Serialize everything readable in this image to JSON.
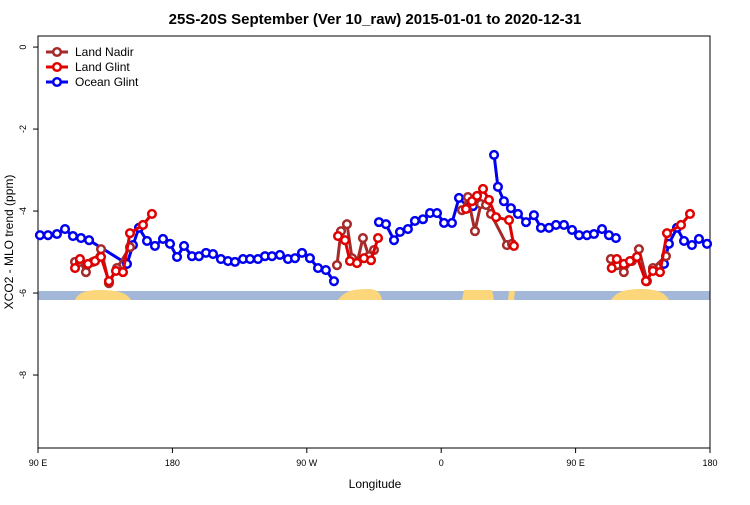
{
  "chart_data": {
    "type": "line",
    "title": "25S-20S September (Ver 10_raw)   2015-01-01 to 2020-12-31",
    "x_label": "Longitude",
    "y_label": "XCO2 - MLO trend (ppm)",
    "xlim": [
      90,
      540
    ],
    "ylim": [
      -9.78,
      0.27
    ],
    "xticks": [
      {
        "value": 90,
        "label": "90 E"
      },
      180,
      {
        "value": 270,
        "label": "90 W"
      },
      {
        "value": 360,
        "label": "0"
      },
      {
        "value": 450,
        "label": "90 E"
      },
      {
        "value": 540,
        "label": "180"
      }
    ],
    "yticks": [
      0,
      -2,
      -4,
      -6,
      -8
    ],
    "legend": "top-left",
    "series": [
      {
        "name": "Land Nadir",
        "color": "#a52a2a",
        "x": [
          114.8,
          118.1,
          122.1,
          126.8,
          132.2,
          137.5,
          142.9,
          151.6,
          null,
          290.2,
          292.9,
          296.9,
          300.3,
          303.6,
          307.6,
          311.6,
          315.0,
          null,
          373.9,
          377.9,
          382.6,
          386.6,
          390.0,
          393.3,
          404.0,
          407.4,
          null,
          473.6,
          477.6,
          482.3,
          487.7,
          492.4,
          497.8,
          501.8,
          510.5
        ],
        "values": [
          -5.24,
          -5.24,
          -5.49,
          -5.24,
          -4.93,
          -5.76,
          -5.39,
          -4.88,
          null,
          -5.32,
          -4.49,
          -4.32,
          -5.15,
          -5.27,
          -4.66,
          -5.1,
          -4.95,
          null,
          -3.98,
          -3.66,
          -4.49,
          -3.83,
          -3.85,
          -4.07,
          -4.83,
          -4.8,
          null,
          -5.17,
          -5.32,
          -5.49,
          -5.22,
          -4.93,
          -5.71,
          -5.39,
          -5.1
        ]
      },
      {
        "name": "Land Glint",
        "color": "#e00000",
        "x": [
          114.8,
          118.1,
          123.5,
          128.2,
          132.2,
          137.5,
          142.2,
          146.9,
          151.6,
          160.3,
          166.3,
          null,
          290.9,
          295.6,
          298.9,
          303.6,
          308.3,
          313.0,
          317.7,
          null,
          376.6,
          380.6,
          384.0,
          388.0,
          392.0,
          396.7,
          405.4,
          408.7,
          null,
          474.2,
          477.6,
          482.3,
          486.4,
          491.1,
          497.1,
          501.8,
          506.5,
          511.2,
          520.6,
          526.6
        ],
        "values": [
          -5.39,
          -5.17,
          -5.29,
          -5.22,
          -5.12,
          -5.71,
          -5.46,
          -5.49,
          -4.54,
          -4.34,
          -4.07,
          null,
          -4.61,
          -4.71,
          -5.22,
          -5.27,
          -5.15,
          -5.2,
          -4.66,
          null,
          -3.95,
          -3.76,
          -3.63,
          -3.46,
          -3.73,
          -4.15,
          -4.22,
          -4.85,
          null,
          -5.39,
          -5.17,
          -5.29,
          -5.22,
          -5.12,
          -5.71,
          -5.46,
          -5.49,
          -4.54,
          -4.34,
          -4.07
        ]
      },
      {
        "name": "Ocean Glint",
        "color": "#0000ee",
        "x": [
          91.3,
          96.7,
          102.7,
          108.1,
          113.4,
          118.8,
          124.2,
          149.6,
          153.6,
          157.6,
          163.0,
          168.3,
          173.7,
          178.4,
          183.1,
          187.8,
          193.1,
          197.8,
          202.5,
          207.2,
          212.5,
          217.2,
          221.9,
          227.3,
          232.0,
          237.3,
          242.0,
          246.7,
          252.0,
          257.4,
          262.1,
          266.8,
          272.1,
          277.5,
          282.8,
          288.2,
          null,
          318.3,
          323.0,
          328.4,
          332.4,
          337.7,
          342.4,
          347.8,
          352.5,
          357.2,
          361.9,
          367.2,
          371.9,
          376.6,
          381.3,
          null,
          395.4,
          398.0,
          402.0,
          406.7,
          411.4,
          416.8,
          422.1,
          426.8,
          432.2,
          436.9,
          442.2,
          447.6,
          452.3,
          457.6,
          462.3,
          467.7,
          472.3,
          477.0,
          null,
          509.2,
          512.5,
          517.9,
          522.6,
          527.9,
          532.6,
          538.0
        ],
        "values": [
          -4.59,
          -4.59,
          -4.56,
          -4.44,
          -4.61,
          -4.66,
          -4.71,
          -5.29,
          -4.83,
          -4.41,
          -4.73,
          -4.85,
          -4.68,
          -4.8,
          -5.12,
          -4.85,
          -5.1,
          -5.1,
          -5.02,
          -5.05,
          -5.17,
          -5.22,
          -5.24,
          -5.17,
          -5.17,
          -5.17,
          -5.1,
          -5.1,
          -5.07,
          -5.17,
          -5.15,
          -5.02,
          -5.15,
          -5.39,
          -5.44,
          -5.71,
          null,
          -4.27,
          -4.32,
          -4.71,
          -4.51,
          -4.44,
          -4.24,
          -4.2,
          -4.05,
          -4.05,
          -4.29,
          -4.29,
          -3.68,
          -3.73,
          -3.88,
          null,
          -2.63,
          -3.41,
          -3.76,
          -3.93,
          -4.07,
          -4.27,
          -4.1,
          -4.41,
          -4.41,
          -4.34,
          -4.34,
          -4.46,
          -4.59,
          -4.59,
          -4.56,
          -4.44,
          -4.59,
          -4.66,
          null,
          -5.29,
          -4.8,
          -4.41,
          -4.73,
          -4.83,
          -4.68,
          -4.8
        ]
      }
    ]
  }
}
